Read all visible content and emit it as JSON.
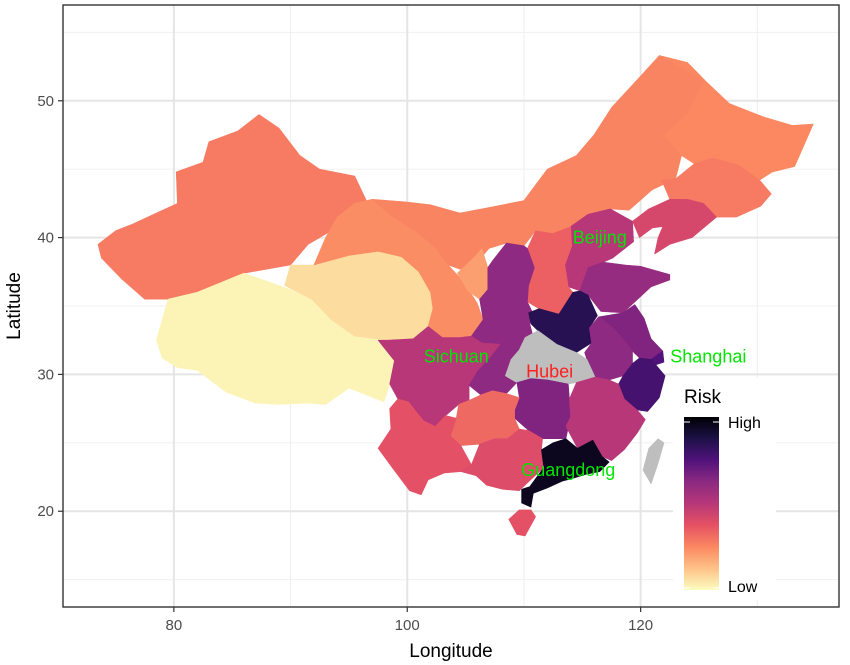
{
  "chart_data": {
    "type": "map",
    "title": "",
    "xlabel": "Longitude",
    "ylabel": "Latitude",
    "xlim": [
      70.5,
      137.0
    ],
    "ylim": [
      13.0,
      57.0
    ],
    "x_ticks": [
      80,
      100,
      120
    ],
    "y_ticks": [
      20,
      30,
      40,
      50
    ],
    "x_tick_labels": [
      "80",
      "100",
      "120"
    ],
    "y_tick_labels": [
      "20",
      "30",
      "40",
      "50"
    ],
    "grid": true,
    "legend": {
      "title": "Risk",
      "position": "right",
      "high_label": "High",
      "low_label": "Low",
      "colors": [
        "#fcfdbf",
        "#fec287",
        "#fb8861",
        "#e65164",
        "#b73779",
        "#8c2981",
        "#51127c",
        "#1d1147",
        "#000004"
      ]
    },
    "missing_color": "#bebebe",
    "regions": [
      {
        "name": "Xinjiang",
        "risk": 0.28
      },
      {
        "name": "Tibet",
        "risk": 0.02
      },
      {
        "name": "Qinghai",
        "risk": 0.07
      },
      {
        "name": "Gansu",
        "risk": 0.24
      },
      {
        "name": "Inner Mongolia",
        "risk": 0.26
      },
      {
        "name": "Ningxia",
        "risk": 0.2
      },
      {
        "name": "Heilongjiang",
        "risk": 0.25
      },
      {
        "name": "Jilin",
        "risk": 0.28
      },
      {
        "name": "Liaoning",
        "risk": 0.42
      },
      {
        "name": "Beijing",
        "risk": 0.98
      },
      {
        "name": "Hebei",
        "risk": 0.5
      },
      {
        "name": "Shanxi",
        "risk": 0.34
      },
      {
        "name": "Shaanxi",
        "risk": 0.62
      },
      {
        "name": "Shandong",
        "risk": 0.6
      },
      {
        "name": "Henan",
        "risk": 0.85
      },
      {
        "name": "Jiangsu",
        "risk": 0.65
      },
      {
        "name": "Anhui",
        "risk": 0.62
      },
      {
        "name": "Shanghai",
        "risk": 0.75
      },
      {
        "name": "Zhejiang",
        "risk": 0.78
      },
      {
        "name": "Sichuan",
        "risk": 0.5
      },
      {
        "name": "Chongqing",
        "risk": 0.62
      },
      {
        "name": "Hubei",
        "risk": null
      },
      {
        "name": "Hunan",
        "risk": 0.65
      },
      {
        "name": "Jiangxi",
        "risk": 0.5
      },
      {
        "name": "Fujian",
        "risk": 0.5
      },
      {
        "name": "Guizhou",
        "risk": 0.32
      },
      {
        "name": "Yunnan",
        "risk": 0.38
      },
      {
        "name": "Guangxi",
        "risk": 0.4
      },
      {
        "name": "Guangdong",
        "risk": 0.95
      },
      {
        "name": "Hainan",
        "risk": 0.38
      },
      {
        "name": "Taiwan",
        "risk": null
      }
    ],
    "labels": [
      {
        "text": "Beijing",
        "color": "#00e600"
      },
      {
        "text": "Sichuan",
        "color": "#00e600"
      },
      {
        "text": "Hubei",
        "color": "#ff2020"
      },
      {
        "text": "Shanghai",
        "color": "#00e600"
      },
      {
        "text": "Guangdong",
        "color": "#00e600"
      }
    ]
  }
}
